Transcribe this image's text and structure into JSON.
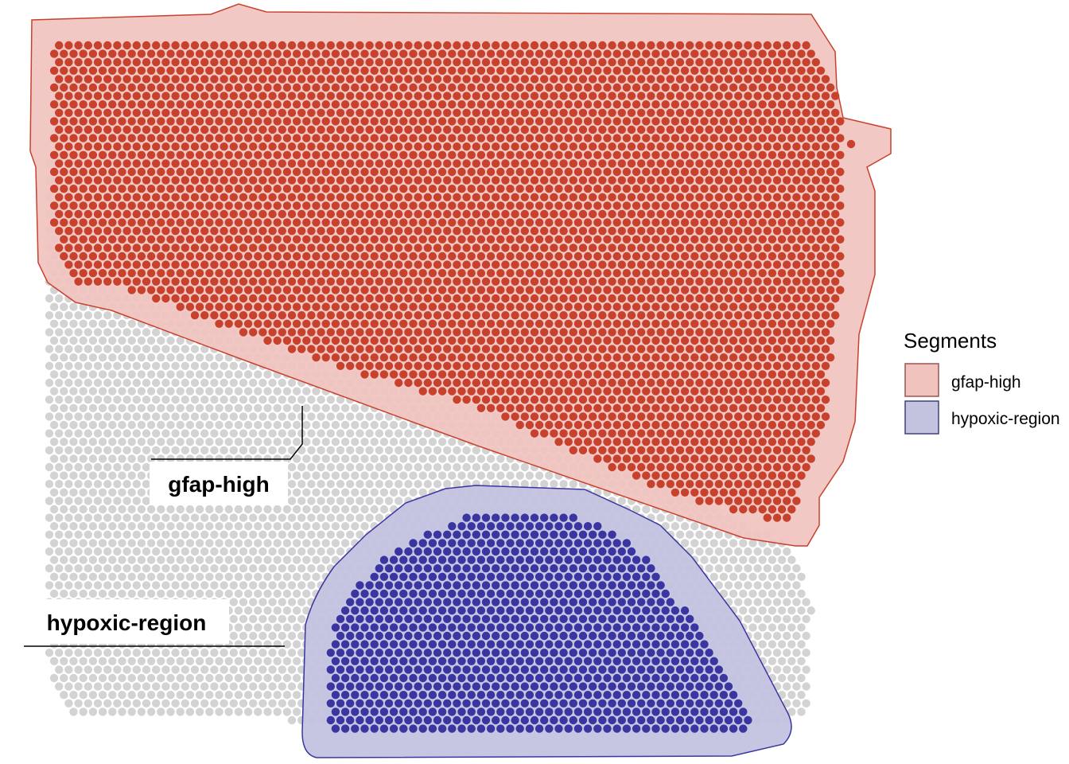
{
  "legend": {
    "title": "Segments",
    "items": [
      {
        "label": "gfap-high",
        "fill": "#f0c3bf",
        "stroke": "#9c5550"
      },
      {
        "label": "hypoxic-region",
        "fill": "#c3c3e0",
        "stroke": "#404080"
      }
    ]
  },
  "segments": [
    {
      "name": "gfap-high",
      "label": "gfap-high",
      "spot_color": "#c8412d",
      "fill": "#f0c3bf",
      "outline": "#c8412d"
    },
    {
      "name": "hypoxic-region",
      "label": "hypoxic-region",
      "spot_color": "#3a35a0",
      "fill": "#c3c3e0",
      "outline": "#3a35a0"
    }
  ],
  "background_spot_color": "#d3d3d3"
}
